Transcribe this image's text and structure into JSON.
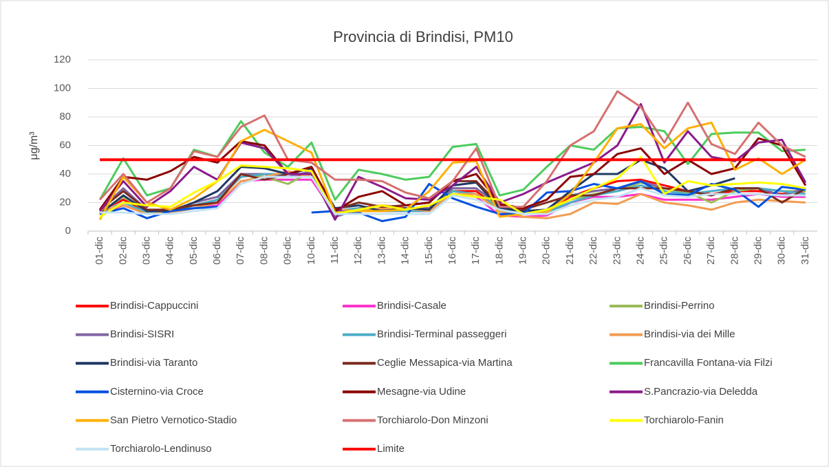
{
  "chart_data": {
    "type": "line",
    "title": "Provincia di Brindisi, PM10",
    "y_label": "μg/m³",
    "categories": [
      "01-dic",
      "02-dic",
      "03-dic",
      "04-dic",
      "05-dic",
      "06-dic",
      "07-dic",
      "08-dic",
      "09-dic",
      "10-dic",
      "11-dic",
      "12-dic",
      "13-dic",
      "14-dic",
      "15-dic",
      "16-dic",
      "17-dic",
      "18-dic",
      "19-dic",
      "20-dic",
      "21-dic",
      "22-dic",
      "23-dic",
      "24-dic",
      "25-dic",
      "26-dic",
      "27-dic",
      "28-dic",
      "29-dic",
      "30-dic",
      "31-dic"
    ],
    "ylim": [
      0,
      120
    ],
    "yticks": [
      0,
      20,
      40,
      60,
      80,
      100,
      120
    ],
    "grid": true,
    "legend": "bottom",
    "series": [
      {
        "name": "Brindisi-Cappuccini",
        "color": "#ff0000",
        "values": [
          14,
          22,
          14,
          14,
          18,
          22,
          38,
          40,
          38,
          40,
          14,
          16,
          18,
          16,
          16,
          28,
          28,
          16,
          14,
          14,
          24,
          30,
          35,
          36,
          32,
          28,
          26,
          28,
          28,
          26,
          28
        ]
      },
      {
        "name": "Brindisi-Casale",
        "color": "#ff33cc",
        "values": [
          12,
          18,
          12,
          13,
          16,
          18,
          35,
          36,
          36,
          36,
          12,
          14,
          14,
          14,
          14,
          26,
          24,
          11,
          10,
          11,
          20,
          24,
          24,
          26,
          22,
          22,
          22,
          24,
          26,
          24,
          24
        ]
      },
      {
        "name": "Brindisi-Perrino",
        "color": "#9bbb59",
        "values": [
          13,
          24,
          14,
          14,
          18,
          22,
          40,
          38,
          33,
          42,
          14,
          16,
          15,
          14,
          16,
          30,
          30,
          16,
          14,
          14,
          22,
          26,
          28,
          34,
          30,
          27,
          20,
          28,
          30,
          28,
          28
        ]
      },
      {
        "name": "Brindisi-SISRI",
        "color": "#8064a2",
        "values": [
          15,
          30,
          15,
          14,
          20,
          24,
          40,
          40,
          38,
          42,
          10,
          15,
          15,
          16,
          16,
          30,
          30,
          18,
          14,
          15,
          25,
          28,
          30,
          35,
          30,
          28,
          25,
          30,
          30,
          25,
          30
        ]
      },
      {
        "name": "Brindisi-Terminal passeggeri",
        "color": "#4bacc6",
        "values": [
          12,
          20,
          13,
          13,
          18,
          22,
          38,
          40,
          40,
          40,
          14,
          16,
          14,
          14,
          14,
          28,
          26,
          16,
          13,
          13,
          20,
          25,
          28,
          32,
          28,
          26,
          28,
          30,
          30,
          28,
          26
        ]
      },
      {
        "name": "Brindisi-via dei Mille",
        "color": "#f39c50",
        "values": [
          14,
          18,
          12,
          13,
          16,
          20,
          35,
          38,
          42,
          38,
          15,
          14,
          16,
          16,
          14,
          26,
          26,
          14,
          10,
          9,
          12,
          20,
          19,
          26,
          20,
          18,
          15,
          20,
          22,
          21,
          20
        ]
      },
      {
        "name": "Brindisi-via Taranto",
        "color": "#1f3864",
        "values": [
          12,
          25,
          14,
          14,
          20,
          28,
          45,
          44,
          40,
          44,
          16,
          18,
          14,
          16,
          15,
          32,
          34,
          16,
          14,
          15,
          28,
          40,
          40,
          50,
          44,
          28,
          32,
          37,
          null,
          null,
          null
        ]
      },
      {
        "name": "Ceglie Messapica-via Martina",
        "color": "#7b2c1f",
        "values": [
          15,
          28,
          15,
          15,
          18,
          20,
          40,
          36,
          40,
          40,
          15,
          20,
          17,
          18,
          20,
          35,
          35,
          18,
          15,
          20,
          25,
          25,
          30,
          30,
          30,
          28,
          25,
          30,
          30,
          20,
          30
        ]
      },
      {
        "name": "Francavilla Fontana-via Filzi",
        "color": "#4ccc5c",
        "values": [
          22,
          51,
          25,
          30,
          57,
          52,
          77,
          55,
          45,
          62,
          22,
          43,
          40,
          36,
          38,
          59,
          61,
          25,
          29,
          45,
          60,
          57,
          72,
          73,
          70,
          47,
          68,
          69,
          69,
          56,
          57
        ]
      },
      {
        "name": "Cisternino-via Croce",
        "color": "#0050e0",
        "values": [
          12,
          16,
          9,
          14,
          16,
          17,
          null,
          null,
          null,
          13,
          14,
          13,
          7,
          10,
          33,
          23,
          17,
          12,
          12,
          27,
          28,
          33,
          30,
          35,
          26,
          25,
          33,
          29,
          17,
          31,
          29
        ]
      },
      {
        "name": "Mesagne-via Udine",
        "color": "#8b0000",
        "values": [
          15,
          38,
          36,
          42,
          52,
          48,
          63,
          60,
          40,
          45,
          14,
          24,
          28,
          18,
          20,
          35,
          40,
          19,
          16,
          22,
          38,
          40,
          54,
          58,
          40,
          50,
          40,
          44,
          65,
          60,
          32
        ]
      },
      {
        "name": "S.Pancrazio-via Deledda",
        "color": "#8b1a8b",
        "values": [
          14,
          35,
          17,
          28,
          45,
          36,
          62,
          58,
          40,
          40,
          8,
          38,
          31,
          23,
          22,
          32,
          45,
          20,
          26,
          34,
          41,
          48,
          60,
          89,
          48,
          70,
          52,
          49,
          62,
          64,
          34
        ]
      },
      {
        "name": "San Pietro Vernotico-Stadio",
        "color": "#ffb000",
        "values": [
          8,
          38,
          20,
          15,
          23,
          35,
          63,
          71,
          63,
          55,
          13,
          14,
          14,
          15,
          28,
          48,
          49,
          10,
          12,
          13,
          26,
          48,
          72,
          75,
          58,
          72,
          76,
          43,
          51,
          40,
          50
        ]
      },
      {
        "name": "Torchiarolo-Don Minzoni",
        "color": "#d67070",
        "values": [
          22,
          40,
          20,
          30,
          56,
          52,
          73,
          81,
          50,
          48,
          36,
          36,
          35,
          27,
          23,
          35,
          58,
          17,
          17,
          35,
          60,
          70,
          98,
          87,
          62,
          90,
          61,
          54,
          76,
          60,
          52
        ]
      },
      {
        "name": "Torchiarolo-Fanin",
        "color": "#ffff00",
        "values": [
          10,
          20,
          18,
          17,
          27,
          35,
          46,
          45,
          44,
          42,
          12,
          15,
          18,
          15,
          18,
          26,
          24,
          22,
          12,
          15,
          22,
          30,
          37,
          52,
          26,
          35,
          32,
          33,
          34,
          33,
          30
        ]
      },
      {
        "name": "Torchiarolo-Lendinuso",
        "color": "#c5e3f3",
        "values": [
          13,
          13,
          12,
          12,
          14,
          16,
          33,
          38,
          38,
          38,
          12,
          12,
          12,
          12,
          12,
          25,
          22,
          15,
          12,
          12,
          18,
          22,
          24,
          30,
          25,
          24,
          26,
          26,
          26,
          25,
          25
        ]
      },
      {
        "name": "Limite",
        "color": "#ff0000",
        "values": [
          50,
          50,
          50,
          50,
          50,
          50,
          50,
          50,
          50,
          50,
          50,
          50,
          50,
          50,
          50,
          50,
          50,
          50,
          50,
          50,
          50,
          50,
          50,
          50,
          50,
          50,
          50,
          50,
          50,
          50,
          50
        ]
      }
    ]
  }
}
